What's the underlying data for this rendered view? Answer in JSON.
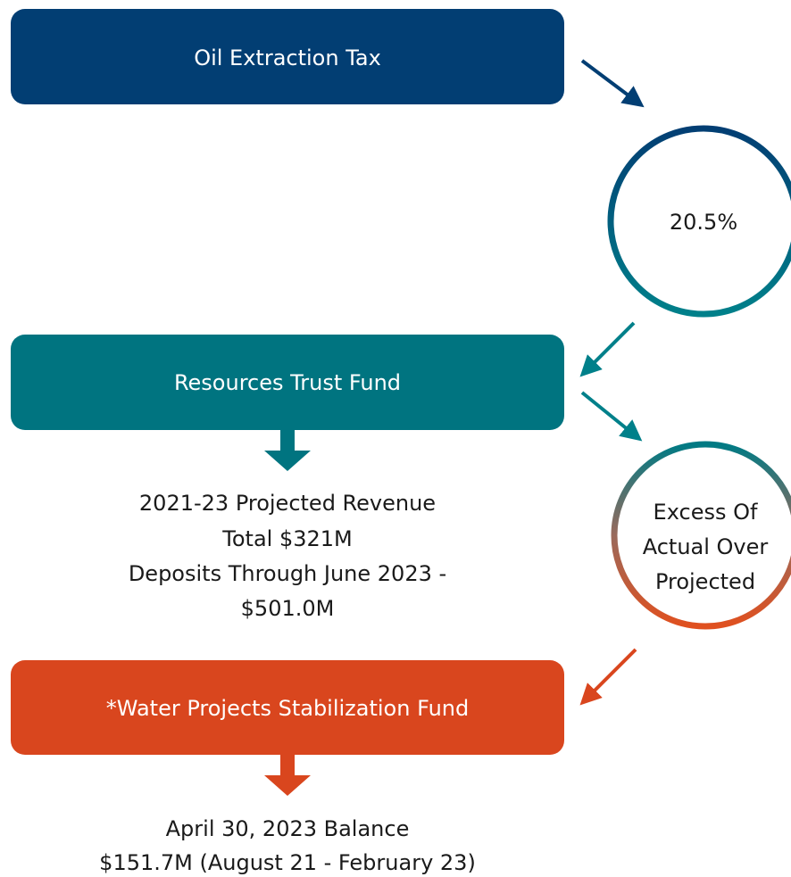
{
  "boxes": [
    {
      "label": "Oil Extraction Tax"
    },
    {
      "label": "Resources Trust Fund"
    },
    {
      "label": "*Water Projects Stabilization Fund"
    }
  ],
  "circles": [
    {
      "lines": [
        "20.5%"
      ]
    },
    {
      "lines": [
        "Excess Of",
        "Actual Over",
        "Projected"
      ]
    }
  ],
  "notes": [
    {
      "lines": [
        "2021-23 Projected Revenue",
        "Total $321M",
        "Deposits Through June 2023 -",
        "$501.0M"
      ]
    },
    {
      "lines": [
        "April 30, 2023 Balance",
        "$151.7M (August 21 - February 23)"
      ]
    }
  ]
}
